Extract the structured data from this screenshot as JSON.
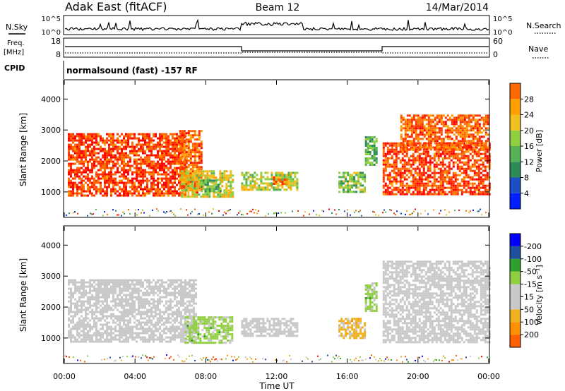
{
  "header": {
    "left": "Adak East (fitACF)",
    "center": "Beam 12",
    "right": "14/Mar/2014"
  },
  "top_panels": {
    "nsky_label": "N.Sky",
    "nsky_ticks": [
      "10^5",
      "10^0"
    ],
    "nsearch_label": "N.Search",
    "nsearch_ticks": [
      "10^5",
      "10^0"
    ],
    "freq_label": "Freq.",
    "freq_unit": "[MHz]",
    "freq_ticks": [
      "18",
      "8"
    ],
    "nave_label": "Nave",
    "nave_ticks": [
      "60",
      "0"
    ],
    "cpid_label": "CPID",
    "cpid_text": "normalsound (fast) -157 RF"
  },
  "colors": {
    "power": [
      "#0020ff",
      "#1a4fc8",
      "#2e8b57",
      "#55b255",
      "#90d040",
      "#f0c020",
      "#ffa000",
      "#ff6a00",
      "#ff3000",
      "#ff0000"
    ],
    "velocity": [
      "#ff0000",
      "#ff6000",
      "#ff9000",
      "#f0b020",
      "#c8c8c8",
      "#c8c8c8",
      "#90d040",
      "#2ea02e",
      "#1e4fa0",
      "#0000ff"
    ],
    "ground": "#c8c8c8"
  },
  "chart_data": [
    {
      "type": "heatmap",
      "name": "power",
      "ylabel": "Slant Range [km]",
      "yticks": [
        1000,
        2000,
        3000,
        4000
      ],
      "ylim": [
        200,
        4600
      ],
      "xlim": [
        0,
        24
      ],
      "colorbar_label": "Power [dB]",
      "colorbar_ticks": [
        4,
        8,
        12,
        16,
        20,
        24,
        28
      ],
      "colorbar_range": [
        0,
        30
      ],
      "regions": [
        {
          "t0": 0.2,
          "t1": 6.8,
          "r0": 850,
          "r1": 2900,
          "value": 26
        },
        {
          "t0": 6.5,
          "t1": 7.8,
          "r0": 1000,
          "r1": 3000,
          "value": 24
        },
        {
          "t0": 6.6,
          "t1": 9.5,
          "r0": 850,
          "r1": 1700,
          "value": 16
        },
        {
          "t0": 7.7,
          "t1": 8.8,
          "r0": 1000,
          "r1": 1400,
          "value": 10
        },
        {
          "t0": 10.0,
          "t1": 13.2,
          "r0": 1050,
          "r1": 1650,
          "value": 14
        },
        {
          "t0": 11.8,
          "t1": 12.6,
          "r0": 1250,
          "r1": 1500,
          "value": 22
        },
        {
          "t0": 15.5,
          "t1": 17.0,
          "r0": 1000,
          "r1": 1650,
          "value": 12
        },
        {
          "t0": 17.0,
          "t1": 17.6,
          "r0": 1900,
          "r1": 2800,
          "value": 10
        },
        {
          "t0": 18.0,
          "t1": 24.0,
          "r0": 900,
          "r1": 2600,
          "value": 26
        },
        {
          "t0": 19.0,
          "t1": 24.0,
          "r0": 2400,
          "r1": 3500,
          "value": 24
        }
      ]
    },
    {
      "type": "heatmap",
      "name": "velocity",
      "ylabel": "Slant Range [km]",
      "xlabel": "Time UT",
      "xticks": [
        "00:00",
        "04:00",
        "08:00",
        "12:00",
        "16:00",
        "20:00",
        "00:00"
      ],
      "yticks": [
        1000,
        2000,
        3000,
        4000
      ],
      "ylim": [
        200,
        4600
      ],
      "xlim": [
        0,
        24
      ],
      "colorbar_label": "Velocity [m s⁻¹]",
      "colorbar_ticks": [
        -200,
        -100,
        -50,
        -15,
        15,
        50,
        100,
        200
      ],
      "regions": [
        {
          "t0": 0.2,
          "t1": 7.5,
          "r0": 850,
          "r1": 2900,
          "value": 0
        },
        {
          "t0": 6.8,
          "t1": 9.5,
          "r0": 850,
          "r1": 1700,
          "value": 60
        },
        {
          "t0": 10.0,
          "t1": 13.2,
          "r0": 1050,
          "r1": 1650,
          "value": 10
        },
        {
          "t0": 15.5,
          "t1": 17.0,
          "r0": 1000,
          "r1": 1650,
          "value": -60
        },
        {
          "t0": 17.0,
          "t1": 17.6,
          "r0": 1900,
          "r1": 2800,
          "value": 60
        },
        {
          "t0": 18.0,
          "t1": 24.0,
          "r0": 900,
          "r1": 3500,
          "value": 0
        }
      ]
    }
  ]
}
